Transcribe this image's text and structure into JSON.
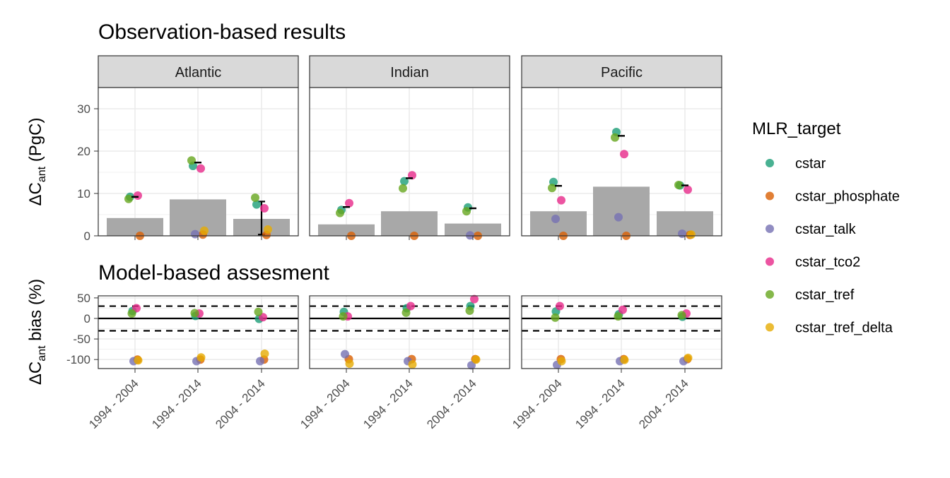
{
  "chart_data": {
    "type": "scatter",
    "facets": [
      "Atlantic",
      "Indian",
      "Pacific"
    ],
    "categories": [
      "1994 - 2004",
      "1994 - 2014",
      "2004 - 2014"
    ],
    "legend": {
      "title": "MLR_target",
      "placement": "right",
      "entries": [
        {
          "name": "cstar",
          "color": "#1B9E77"
        },
        {
          "name": "cstar_phosphate",
          "color": "#D95F02"
        },
        {
          "name": "cstar_talk",
          "color": "#7570B3"
        },
        {
          "name": "cstar_tco2",
          "color": "#E7298A"
        },
        {
          "name": "cstar_tref",
          "color": "#66A61E"
        },
        {
          "name": "cstar_tref_delta",
          "color": "#E6AB02"
        }
      ]
    },
    "top": {
      "title": "Observation-based results",
      "ylabel_main": "ΔC",
      "ylabel_sub": "ant",
      "ylabel_unit": " (PgC)",
      "ylim": [
        0,
        35
      ],
      "yticks": [
        0,
        10,
        20,
        30
      ],
      "grid": true,
      "panels": [
        {
          "facet": "Atlantic",
          "bars": [
            4.2,
            8.6,
            4.0
          ],
          "means": [
            9.2,
            17.3,
            null
          ],
          "errorbars": [
            null,
            null,
            {
              "low": 0.3,
              "high": 8.1
            }
          ],
          "points": [
            {
              "series": "cstar",
              "values": [
                9.2,
                16.5,
                7.4
              ]
            },
            {
              "series": "cstar_phosphate",
              "values": [
                0.0,
                0.3,
                0.2
              ]
            },
            {
              "series": "cstar_talk",
              "values": [
                null,
                0.4,
                null
              ]
            },
            {
              "series": "cstar_tco2",
              "values": [
                9.5,
                15.9,
                6.5
              ]
            },
            {
              "series": "cstar_tref",
              "values": [
                8.7,
                17.8,
                9.0
              ]
            },
            {
              "series": "cstar_tref_delta",
              "values": [
                null,
                1.2,
                1.5
              ]
            }
          ]
        },
        {
          "facet": "Indian",
          "bars": [
            2.7,
            5.8,
            2.9
          ],
          "means": [
            6.8,
            13.6,
            6.5
          ],
          "errorbars": [
            null,
            null,
            null
          ],
          "points": [
            {
              "series": "cstar",
              "values": [
                6.1,
                12.9,
                6.7
              ]
            },
            {
              "series": "cstar_phosphate",
              "values": [
                0.0,
                0.0,
                0.0
              ]
            },
            {
              "series": "cstar_talk",
              "values": [
                null,
                null,
                0.1
              ]
            },
            {
              "series": "cstar_tco2",
              "values": [
                7.7,
                14.3,
                null
              ]
            },
            {
              "series": "cstar_tref",
              "values": [
                5.4,
                11.2,
                5.8
              ]
            },
            {
              "series": "cstar_tref_delta",
              "values": [
                null,
                null,
                null
              ]
            }
          ]
        },
        {
          "facet": "Pacific",
          "bars": [
            5.8,
            11.6,
            5.8
          ],
          "means": [
            11.8,
            23.6,
            11.9
          ],
          "errorbars": [
            null,
            null,
            null
          ],
          "points": [
            {
              "series": "cstar",
              "values": [
                12.7,
                24.5,
                11.9
              ]
            },
            {
              "series": "cstar_phosphate",
              "values": [
                0.0,
                0.0,
                0.2
              ]
            },
            {
              "series": "cstar_talk",
              "values": [
                4.0,
                4.4,
                0.5
              ]
            },
            {
              "series": "cstar_tco2",
              "values": [
                8.4,
                19.3,
                10.9
              ]
            },
            {
              "series": "cstar_tref",
              "values": [
                11.3,
                23.2,
                12.0
              ]
            },
            {
              "series": "cstar_tref_delta",
              "values": [
                null,
                null,
                0.3
              ]
            }
          ]
        }
      ]
    },
    "bottom": {
      "title": "Model-based assesment",
      "ylabel_main": "ΔC",
      "ylabel_sub": "ant",
      "ylabel_unit": " bias (%)",
      "ylim": [
        -122,
        55
      ],
      "yticks": [
        50,
        0,
        -50,
        -100
      ],
      "hlines_solid": [
        0
      ],
      "hlines_dashed": [
        30,
        -30
      ],
      "grid": true,
      "panels": [
        {
          "facet": "Atlantic",
          "points": [
            {
              "series": "cstar",
              "values": [
                18,
                6,
                -1
              ]
            },
            {
              "series": "cstar_phosphate",
              "values": [
                -100,
                -100,
                -100
              ]
            },
            {
              "series": "cstar_talk",
              "values": [
                -104,
                -104,
                -104
              ]
            },
            {
              "series": "cstar_tco2",
              "values": [
                25,
                12,
                3
              ]
            },
            {
              "series": "cstar_tref",
              "values": [
                12,
                13,
                16
              ]
            },
            {
              "series": "cstar_tref_delta",
              "values": [
                -102,
                -95,
                -86
              ]
            }
          ]
        },
        {
          "facet": "Indian",
          "points": [
            {
              "series": "cstar",
              "values": [
                16,
                25,
                30
              ]
            },
            {
              "series": "cstar_phosphate",
              "values": [
                -99,
                -99,
                -99
              ]
            },
            {
              "series": "cstar_talk",
              "values": [
                -87,
                -104,
                -114
              ]
            },
            {
              "series": "cstar_tco2",
              "values": [
                5,
                30,
                47
              ]
            },
            {
              "series": "cstar_tref",
              "values": [
                5,
                14,
                19
              ]
            },
            {
              "series": "cstar_tref_delta",
              "values": [
                -110,
                -112,
                -100
              ]
            }
          ]
        },
        {
          "facet": "Pacific",
          "points": [
            {
              "series": "cstar",
              "values": [
                17,
                10,
                4
              ]
            },
            {
              "series": "cstar_phosphate",
              "values": [
                -99,
                -99,
                -99
              ]
            },
            {
              "series": "cstar_talk",
              "values": [
                -113,
                -104,
                -104
              ]
            },
            {
              "series": "cstar_tco2",
              "values": [
                30,
                21,
                12
              ]
            },
            {
              "series": "cstar_tref",
              "values": [
                2,
                5,
                8
              ]
            },
            {
              "series": "cstar_tref_delta",
              "values": [
                -104,
                -101,
                -96
              ]
            }
          ]
        }
      ]
    }
  }
}
